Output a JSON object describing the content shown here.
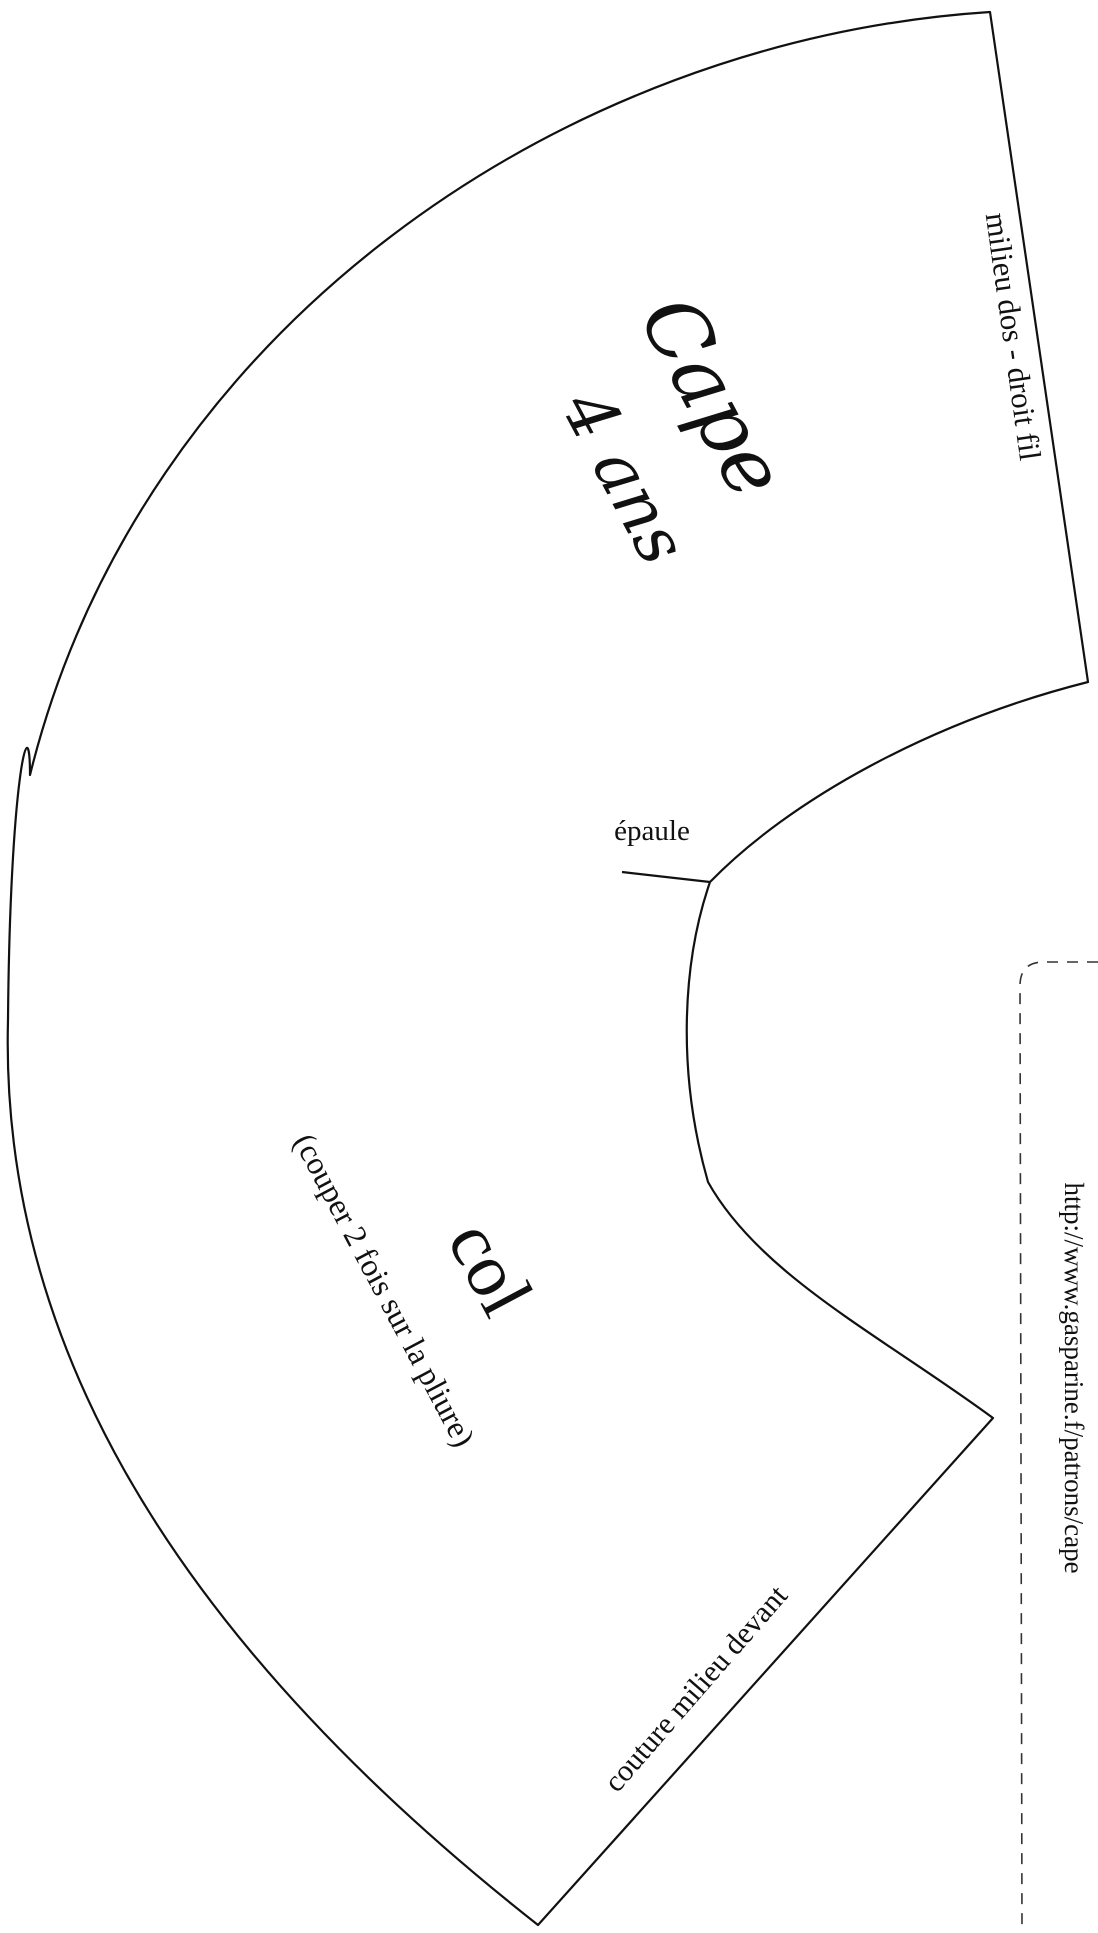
{
  "pattern": {
    "back_center_label": "milieu dos - droit fil",
    "title": "Cape",
    "size": "4 ans",
    "shoulder_label": "épaule",
    "piece_name": "col",
    "cut_instruction": "(couper 2 fois sur la pliure)",
    "front_center_label": "couture milieu devant",
    "url": "http://www.gasparine.f/patrons/cape"
  },
  "colors": {
    "ink": "#111111",
    "paper": "#ffffff"
  }
}
